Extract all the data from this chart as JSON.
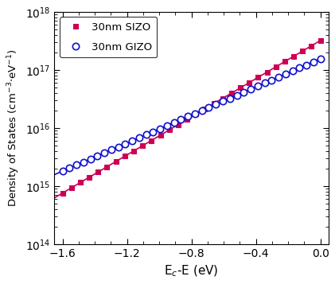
{
  "title": "",
  "xlabel": "E$_c$-E (eV)",
  "ylabel": "Density of States (cm$^{-3}$$\\cdot$eV$^{-1}$)",
  "xlim": [
    -1.65,
    0.05
  ],
  "ylim_log": [
    14,
    18
  ],
  "sizo_label": "30nm SIZO",
  "gizo_label": "30nm GIZO",
  "sizo_color": "#CC0055",
  "gizo_color": "#1010CC",
  "sizo_marker": "s",
  "gizo_marker": "o",
  "sizo_N0": 3.2e+17,
  "sizo_E0": 0.265,
  "gizo_N0": 1.55e+17,
  "gizo_E0": 0.36,
  "sizo_nmarkers": 30,
  "gizo_nmarkers": 38,
  "x_ticks": [
    -1.6,
    -1.2,
    -0.8,
    -0.4,
    0.0
  ],
  "background_color": "#ffffff"
}
